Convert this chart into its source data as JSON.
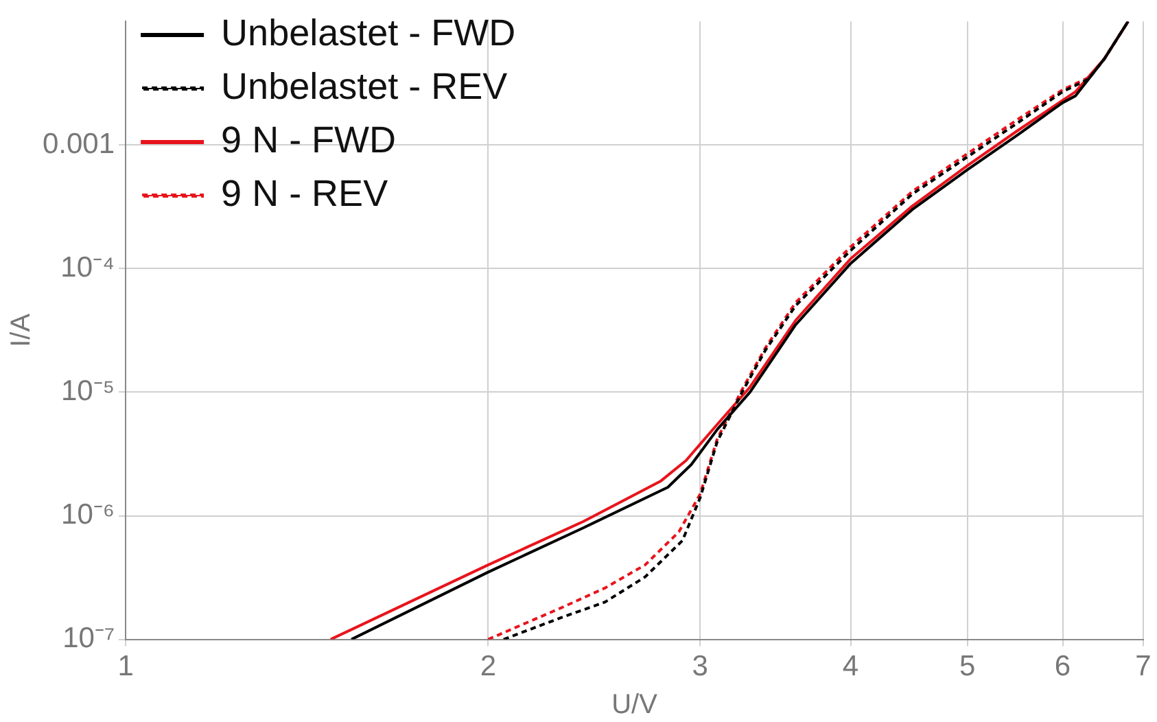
{
  "chart_data": {
    "type": "line",
    "xlabel": "U/V",
    "ylabel": "I/A",
    "log": "xy",
    "xlim": [
      1,
      7
    ],
    "xticks": [
      1,
      2,
      3,
      4,
      5,
      6,
      7
    ],
    "ylim": [
      1e-07,
      0.01
    ],
    "yticks": [
      {
        "value": 1e-07,
        "label": "10⁻⁷"
      },
      {
        "value": 1e-06,
        "label": "10⁻⁶"
      },
      {
        "value": 1e-05,
        "label": "10⁻⁵"
      },
      {
        "value": 0.0001,
        "label": "10⁻⁴"
      },
      0.001
    ],
    "grid": true,
    "legend": "top left",
    "marker": "none",
    "series": [
      {
        "name": "Unbelastet - FWD",
        "color": "#000000",
        "line_style": "solid",
        "x": [
          1.54,
          2,
          2.4,
          2.82,
          2.95,
          3.1,
          3.3,
          3.6,
          4,
          4.5,
          5,
          5.5,
          6,
          6.15,
          6.5,
          6.8
        ],
        "values": [
          1e-07,
          3.5e-07,
          8e-07,
          1.7e-06,
          2.6e-06,
          5e-06,
          1e-05,
          3.5e-05,
          0.00011,
          0.0003,
          0.00063,
          0.0012,
          0.0022,
          0.0025,
          0.005,
          0.01
        ]
      },
      {
        "name": "Unbelastet - REV",
        "color": "#000000",
        "line_style": "dashed",
        "x": [
          2.06,
          2.3,
          2.5,
          2.7,
          2.9,
          3,
          3.1,
          3.25,
          3.4,
          3.6,
          4,
          4.5,
          5,
          5.5,
          6,
          6.3,
          6.5,
          6.8
        ],
        "values": [
          1e-07,
          1.5e-07,
          2e-07,
          3.2e-07,
          6.3e-07,
          1.4e-06,
          4e-06,
          1e-05,
          2.2e-05,
          5e-05,
          0.00014,
          0.0004,
          0.0008,
          0.0015,
          0.0027,
          0.0034,
          0.005,
          0.01
        ]
      },
      {
        "name": "9 N - FWD",
        "color": "#e8141c",
        "line_style": "solid",
        "x": [
          1.48,
          2,
          2.4,
          2.78,
          2.92,
          3.1,
          3.3,
          3.6,
          4,
          4.5,
          5,
          5.5,
          6,
          6.15,
          6.5,
          6.8
        ],
        "values": [
          1e-07,
          4e-07,
          9e-07,
          1.9e-06,
          2.8e-06,
          5.5e-06,
          1.1e-05,
          3.8e-05,
          0.00012,
          0.00032,
          0.00068,
          0.0013,
          0.0023,
          0.0027,
          0.005,
          0.01
        ]
      },
      {
        "name": "9 N - REV",
        "color": "#e8141c",
        "line_style": "dashed",
        "x": [
          2,
          2.3,
          2.5,
          2.7,
          2.88,
          3,
          3.1,
          3.25,
          3.4,
          3.6,
          4,
          4.5,
          5,
          5.5,
          6,
          6.3,
          6.5,
          6.8
        ],
        "values": [
          1e-07,
          1.8e-07,
          2.6e-07,
          4e-07,
          7.4e-07,
          1.5e-06,
          4.2e-06,
          1.05e-05,
          2.3e-05,
          5.3e-05,
          0.00015,
          0.00042,
          0.00085,
          0.0016,
          0.0028,
          0.0035,
          0.005,
          0.01
        ]
      }
    ]
  }
}
